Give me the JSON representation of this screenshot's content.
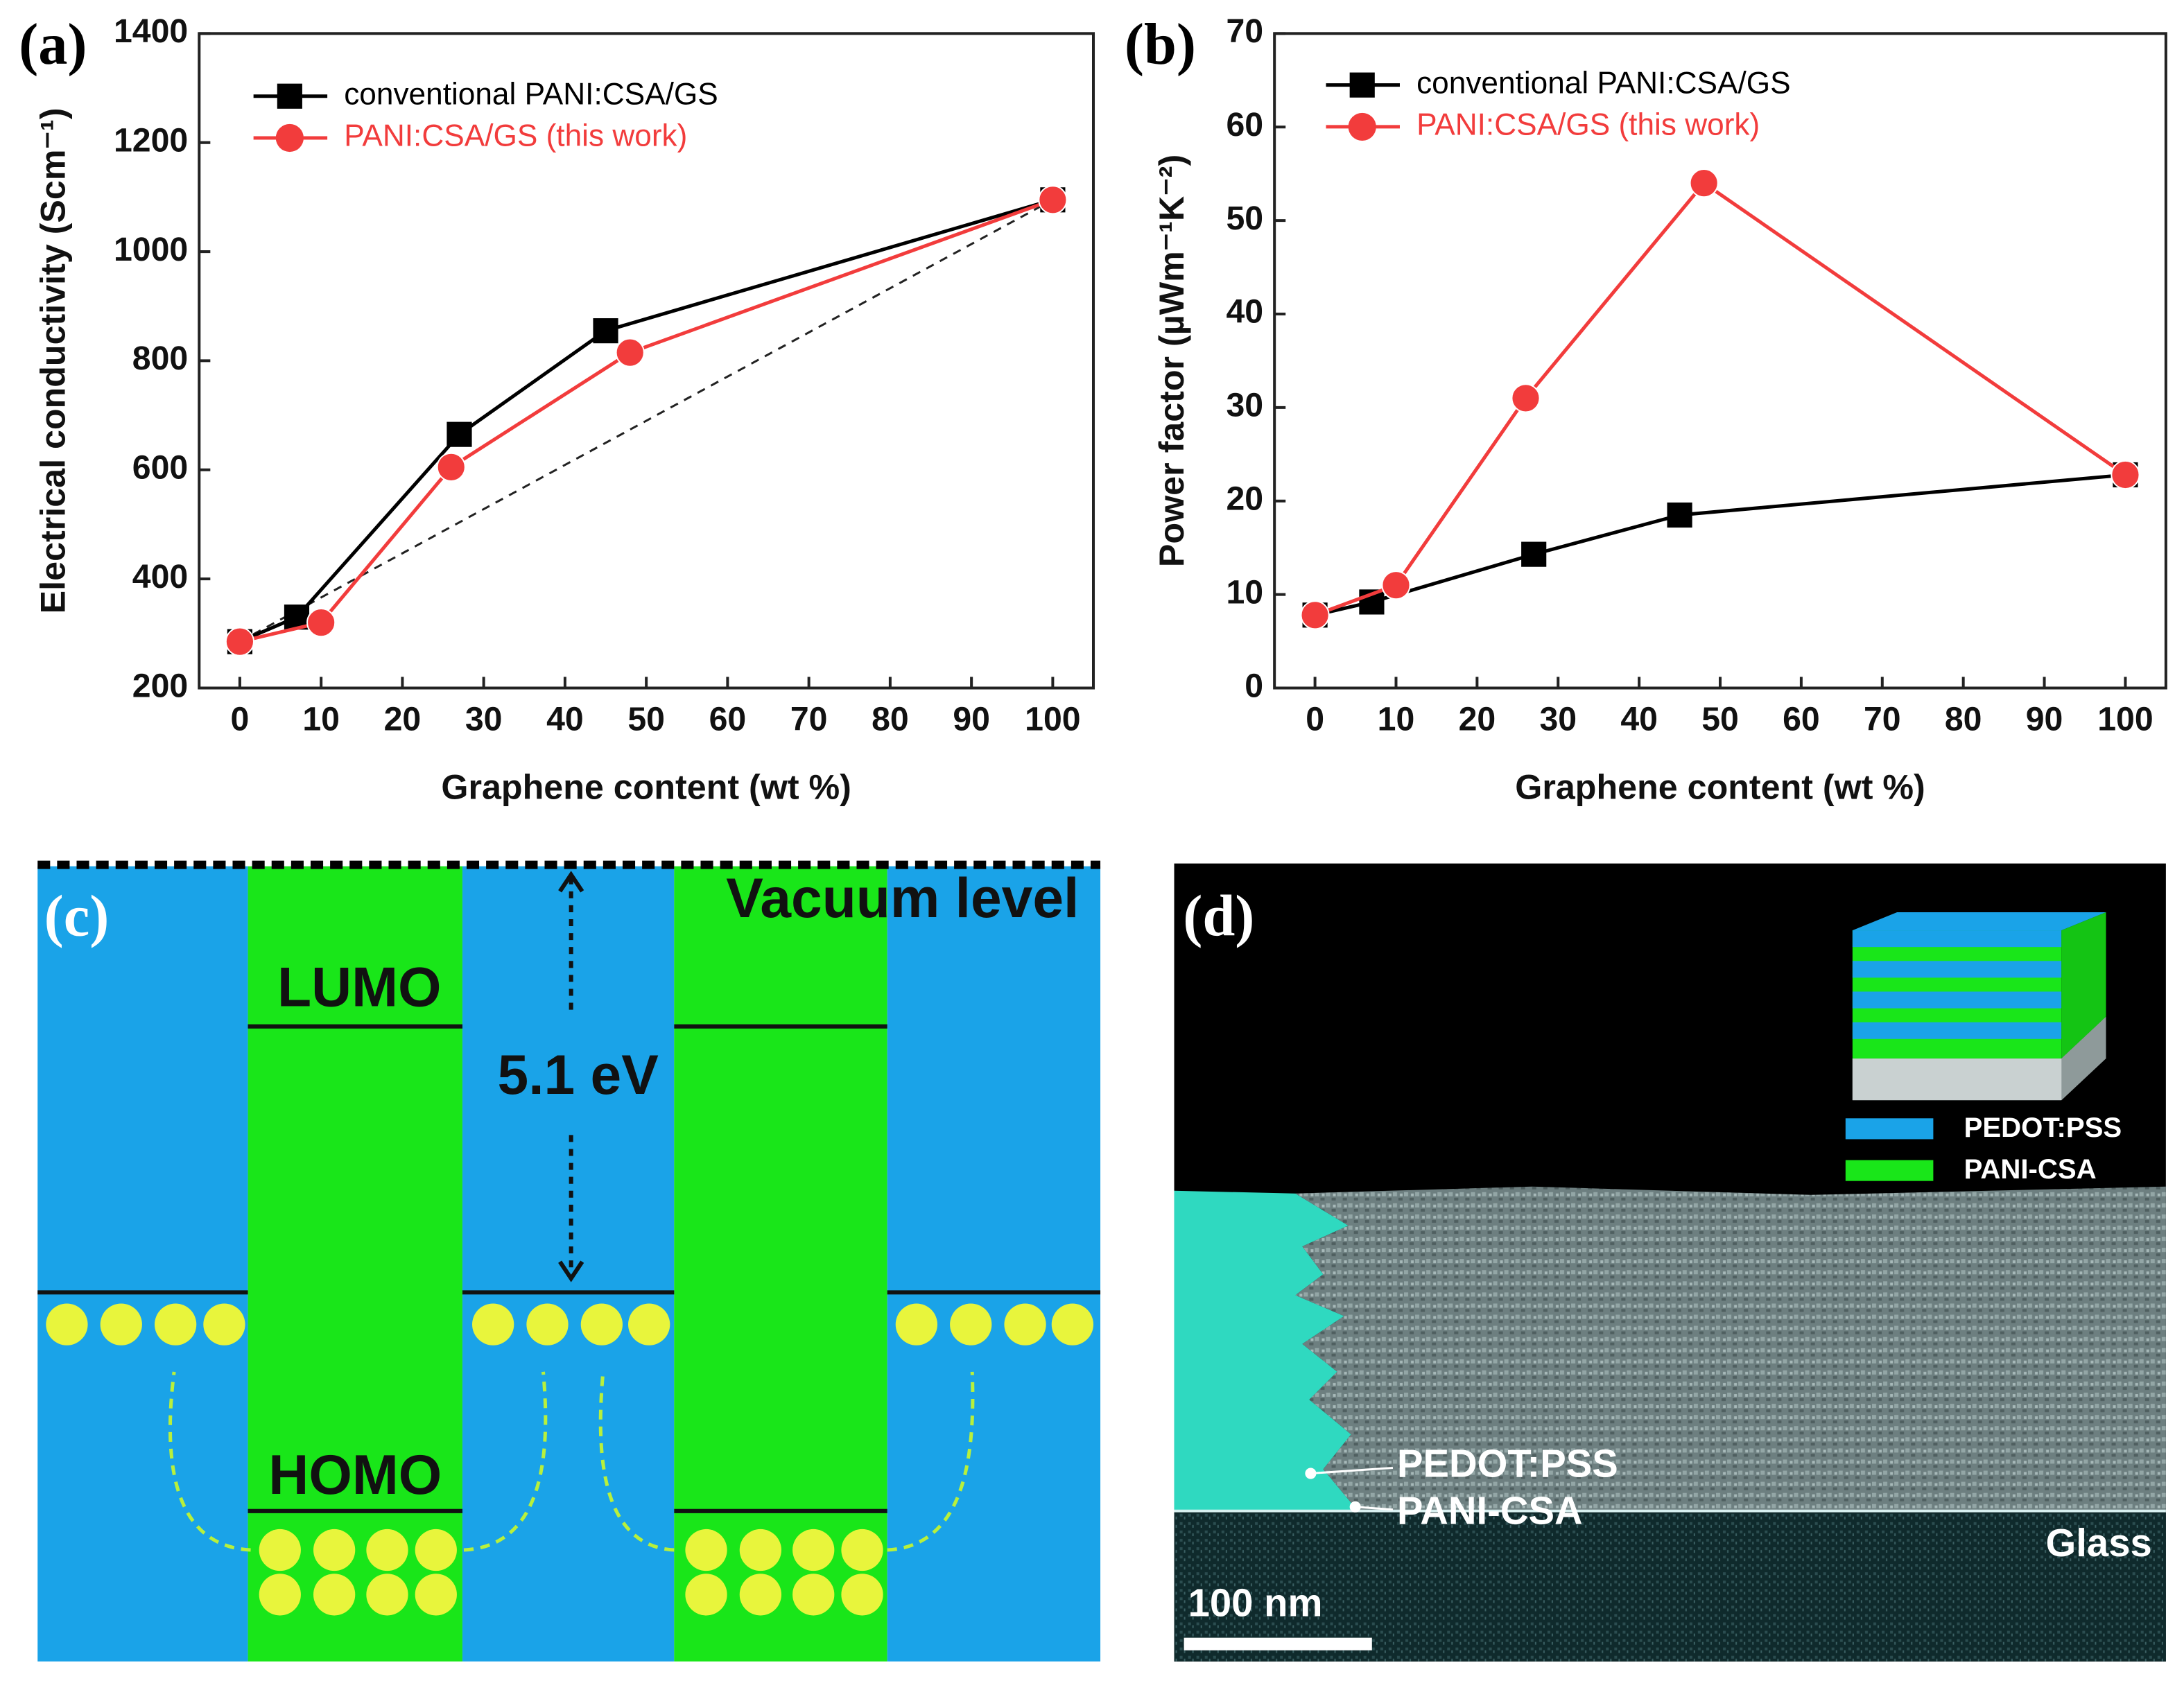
{
  "chart_data": [
    {
      "type": "line",
      "panel_label": "(a)",
      "x_label": "Graphene content (wt %)",
      "y_label": "Electrical conductivity (Scm⁻¹)",
      "xlim": [
        -5,
        105
      ],
      "ylim": [
        200,
        1400
      ],
      "xticks": [
        0,
        10,
        20,
        30,
        40,
        50,
        60,
        70,
        80,
        90,
        100
      ],
      "yticks": [
        200,
        400,
        600,
        800,
        1000,
        1200,
        1400
      ],
      "series": [
        {
          "name": "conventional PANI:CSA/GS",
          "color": "#000000",
          "marker": "square",
          "x": [
            0,
            7,
            27,
            45,
            100
          ],
          "values": [
            285,
            330,
            665,
            855,
            1095
          ]
        },
        {
          "name": "PANI:CSA/GS (this work)",
          "color": "#f23c3c",
          "marker": "circle",
          "x": [
            0,
            10,
            26,
            48,
            100
          ],
          "values": [
            285,
            320,
            605,
            815,
            1095
          ]
        }
      ],
      "reference_line": {
        "x": [
          0,
          100
        ],
        "values": [
          285,
          1095
        ]
      }
    },
    {
      "type": "line",
      "panel_label": "(b)",
      "x_label": "Graphene content (wt %)",
      "y_label": "Power factor (µWm⁻¹K⁻²)",
      "xlim": [
        -5,
        105
      ],
      "ylim": [
        0,
        70
      ],
      "xticks": [
        0,
        10,
        20,
        30,
        40,
        50,
        60,
        70,
        80,
        90,
        100
      ],
      "yticks": [
        0,
        10,
        20,
        30,
        40,
        50,
        60,
        70
      ],
      "series": [
        {
          "name": "conventional PANI:CSA/GS",
          "color": "#000000",
          "marker": "square",
          "x": [
            0,
            7,
            27,
            45,
            100
          ],
          "values": [
            7.8,
            9.2,
            14.3,
            18.5,
            22.8
          ]
        },
        {
          "name": "PANI:CSA/GS (this work)",
          "color": "#f23c3c",
          "marker": "circle",
          "x": [
            0,
            10,
            26,
            48,
            100
          ],
          "values": [
            7.8,
            11,
            31,
            54,
            22.8
          ]
        }
      ]
    }
  ],
  "panel_c": {
    "label": "(c)",
    "vacuum_level": "Vacuum level",
    "lumo": "LUMO",
    "homo": "HOMO",
    "gap": "5.1 eV"
  },
  "panel_d": {
    "label": "(d)",
    "legend": [
      "PEDOT:PSS",
      "PANI-CSA"
    ],
    "layer_labels": [
      "PEDOT:PSS",
      "PANI-CSA"
    ],
    "substrate": "Glass",
    "scale_bar": "100 nm"
  }
}
